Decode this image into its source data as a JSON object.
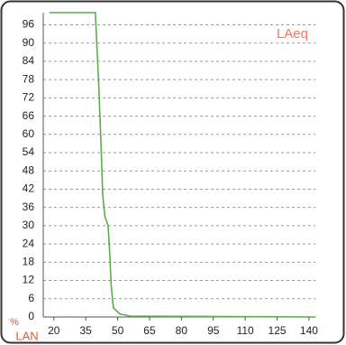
{
  "chart_data": {
    "type": "line",
    "x": [
      17.9,
      39.5,
      41,
      42,
      43,
      44,
      45.5,
      46.2,
      47,
      48,
      51,
      56,
      143
    ],
    "series": [
      {
        "name": "LAeq",
        "color": "#5aae4a",
        "values": [
          100,
          100,
          78,
          60,
          40,
          33,
          30,
          22,
          10,
          3,
          1,
          0.3,
          0
        ]
      }
    ],
    "xlabel": "LAN",
    "ylabel": "%",
    "xlim": [
      15,
      143
    ],
    "ylim": [
      0,
      100
    ],
    "xticks": [
      20,
      35,
      50,
      65,
      80,
      95,
      110,
      125,
      140
    ],
    "yticks": [
      0,
      6,
      12,
      18,
      24,
      30,
      36,
      42,
      48,
      54,
      60,
      66,
      72,
      78,
      84,
      90,
      96
    ],
    "grid": true,
    "legend": "top-right",
    "label_color": "#e8553a",
    "legend_color": "#f07860"
  }
}
